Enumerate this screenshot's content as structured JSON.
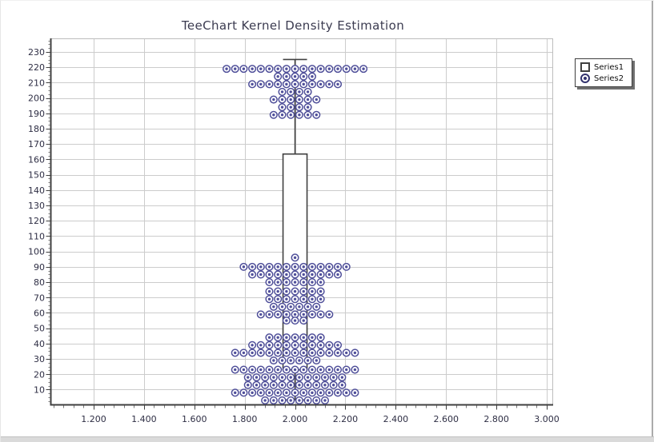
{
  "legend": {
    "items": [
      {
        "label": "Series1",
        "marker": "square-outline"
      },
      {
        "label": "Series2",
        "marker": "circle-dot"
      }
    ],
    "position": "top-right"
  },
  "chart_data": {
    "type": "box+scatter",
    "title": "TeeChart Kernel Density Estimation",
    "xlabel": "",
    "ylabel": "",
    "xlim": [
      1.03,
      3.03
    ],
    "ylim": [
      0,
      239
    ],
    "grid": true,
    "legend_position": "top-right",
    "x_ticks": [
      {
        "value": 1.2,
        "label": "1.200"
      },
      {
        "value": 1.4,
        "label": "1.400"
      },
      {
        "value": 1.6,
        "label": "1.600"
      },
      {
        "value": 1.8,
        "label": "1.800"
      },
      {
        "value": 2.0,
        "label": "2.000"
      },
      {
        "value": 2.2,
        "label": "2.200"
      },
      {
        "value": 2.4,
        "label": "2.400"
      },
      {
        "value": 2.6,
        "label": "2.600"
      },
      {
        "value": 2.8,
        "label": "2.800"
      },
      {
        "value": 3.0,
        "label": "3.000"
      }
    ],
    "y_ticks": [
      10,
      20,
      30,
      40,
      50,
      60,
      70,
      80,
      90,
      100,
      110,
      120,
      130,
      140,
      150,
      160,
      170,
      180,
      190,
      200,
      210,
      220,
      230
    ],
    "series": [
      {
        "name": "Series1",
        "type": "box",
        "x": 2.0,
        "whisker_min": 3.3,
        "q1": 22.9,
        "median": 61.3,
        "q3": 163.5,
        "whisker_max": 225.1
      },
      {
        "name": "Series2",
        "type": "scatter-swarm",
        "center_x": 2.0,
        "dx": 0.034,
        "rows": [
          {
            "y": 219,
            "n": 17
          },
          {
            "y": 214,
            "n": 5
          },
          {
            "y": 209,
            "n": 11
          },
          {
            "y": 204,
            "n": 4
          },
          {
            "y": 199,
            "n": 6
          },
          {
            "y": 194,
            "n": 4
          },
          {
            "y": 189,
            "n": 6
          },
          {
            "y": 96,
            "n": 1
          },
          {
            "y": 90,
            "n": 13
          },
          {
            "y": 85,
            "n": 11
          },
          {
            "y": 80,
            "n": 7
          },
          {
            "y": 74,
            "n": 7
          },
          {
            "y": 69,
            "n": 7
          },
          {
            "y": 64,
            "n": 6
          },
          {
            "y": 59,
            "n": 9
          },
          {
            "y": 55,
            "n": 3
          },
          {
            "y": 44,
            "n": 7
          },
          {
            "y": 39,
            "n": 11
          },
          {
            "y": 34,
            "n": 15
          },
          {
            "y": 29,
            "n": 6
          },
          {
            "y": 23,
            "n": 15
          },
          {
            "y": 18,
            "n": 12
          },
          {
            "y": 13,
            "n": 12
          },
          {
            "y": 8,
            "n": 15
          },
          {
            "y": 3,
            "n": 8
          }
        ]
      }
    ]
  },
  "colors": {
    "marker": "#50509a",
    "box_line": "#404040",
    "axis_line": "#404040",
    "grid_line": "#cccccc",
    "frame_line": "#bdbdbd",
    "tick_minor": "#7a7a7a",
    "axis_label": "#2e2e44",
    "title": "#3b3b50",
    "legend_border": "#3f3f3f",
    "legend_shadow": "#6f6f6f"
  }
}
